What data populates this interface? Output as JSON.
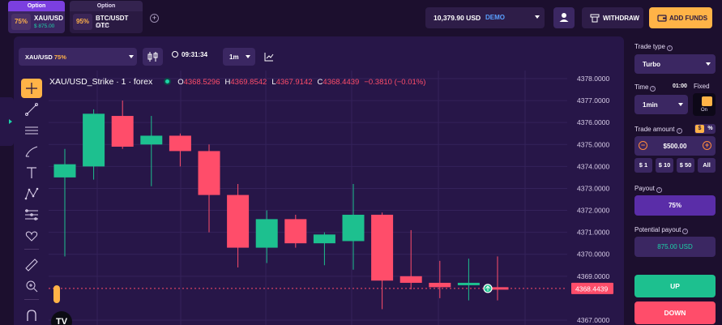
{
  "tabs": [
    {
      "head": "Option",
      "pct": "75%",
      "name": "XAU/USD",
      "sub": "$ 875.00"
    },
    {
      "head": "Option",
      "pct": "95%",
      "name": "BTC/USDT OTC",
      "sub": "$0.00"
    }
  ],
  "header": {
    "balance": "10,379.90 USD",
    "account": "DEMO",
    "withdraw_label": "WITHDRAW",
    "add_funds_label": "ADD FUNDS"
  },
  "chart_toolbar": {
    "asset": "XAU/USD",
    "asset_pct": "75%",
    "timer": "09:31:34",
    "timeframe": "1m"
  },
  "ohlc": {
    "symbol": "XAU/USD_Strike · 1 · forex",
    "o_label": "O",
    "o": "4368.5296",
    "h_label": "H",
    "h": "4369.8542",
    "l_label": "L",
    "l": "4367.9142",
    "c_label": "C",
    "c": "4368.4439",
    "change": "−0.3810 (−0.01%)"
  },
  "tv_logo": "TV",
  "colors": {
    "up": "#1dc08f",
    "down": "#ff4d6a",
    "accent": "#ffb347",
    "background": "#271648"
  },
  "chart_data": {
    "type": "candlestick",
    "y_ticks": [
      "4378.0000",
      "4377.0000",
      "4376.0000",
      "4375.0000",
      "4374.0000",
      "4373.0000",
      "4372.0000",
      "4371.0000",
      "4370.0000",
      "4369.0000",
      "4367.0000"
    ],
    "ylim": [
      4366.9,
      4378.2
    ],
    "current_price": "4368.4439",
    "current_value": 4368.4439,
    "candles": [
      {
        "o": 4373.5,
        "h": 4374.8,
        "l": 4369.9,
        "c": 4374.1
      },
      {
        "o": 4374.0,
        "h": 4376.6,
        "l": 4373.4,
        "c": 4376.4
      },
      {
        "o": 4376.3,
        "h": 4377.0,
        "l": 4374.8,
        "c": 4374.9
      },
      {
        "o": 4375.0,
        "h": 4376.3,
        "l": 4373.1,
        "c": 4375.4
      },
      {
        "o": 4375.4,
        "h": 4375.5,
        "l": 4374.0,
        "c": 4374.7
      },
      {
        "o": 4374.7,
        "h": 4375.0,
        "l": 4371.0,
        "c": 4372.7
      },
      {
        "o": 4372.7,
        "h": 4373.2,
        "l": 4369.4,
        "c": 4370.3
      },
      {
        "o": 4370.3,
        "h": 4372.0,
        "l": 4369.6,
        "c": 4371.6
      },
      {
        "o": 4371.6,
        "h": 4371.8,
        "l": 4370.3,
        "c": 4370.5
      },
      {
        "o": 4370.5,
        "h": 4371.0,
        "l": 4369.5,
        "c": 4370.9
      },
      {
        "o": 4370.6,
        "h": 4373.2,
        "l": 4369.3,
        "c": 4371.8
      },
      {
        "o": 4371.8,
        "h": 4371.9,
        "l": 4367.5,
        "c": 4368.8
      },
      {
        "o": 4369.0,
        "h": 4371.1,
        "l": 4368.4,
        "c": 4368.7
      },
      {
        "o": 4368.7,
        "h": 4369.7,
        "l": 4368.0,
        "c": 4368.5
      },
      {
        "o": 4368.6,
        "h": 4369.8,
        "l": 4367.9,
        "c": 4368.7
      },
      {
        "o": 4368.5,
        "h": 4369.9,
        "l": 4367.9,
        "c": 4368.4
      }
    ]
  },
  "right_panel": {
    "trade_type_label": "Trade type",
    "trade_type": "Turbo",
    "time_label": "Time",
    "time_small": "01:00",
    "fixed_label": "Fixed",
    "fixed_state": "On",
    "time_value": "1min",
    "trade_amount_label": "Trade amount",
    "dollar": "$",
    "percent": "%",
    "amount": "$500.00",
    "minus": "−",
    "plus": "+",
    "quick": [
      "$ 1",
      "$ 10",
      "$ 50",
      "All"
    ],
    "payout_label": "Payout",
    "payout": "75%",
    "potential_label": "Potential payout",
    "potential": "875.00 USD",
    "up_label": "UP",
    "down_label": "DOWN"
  }
}
